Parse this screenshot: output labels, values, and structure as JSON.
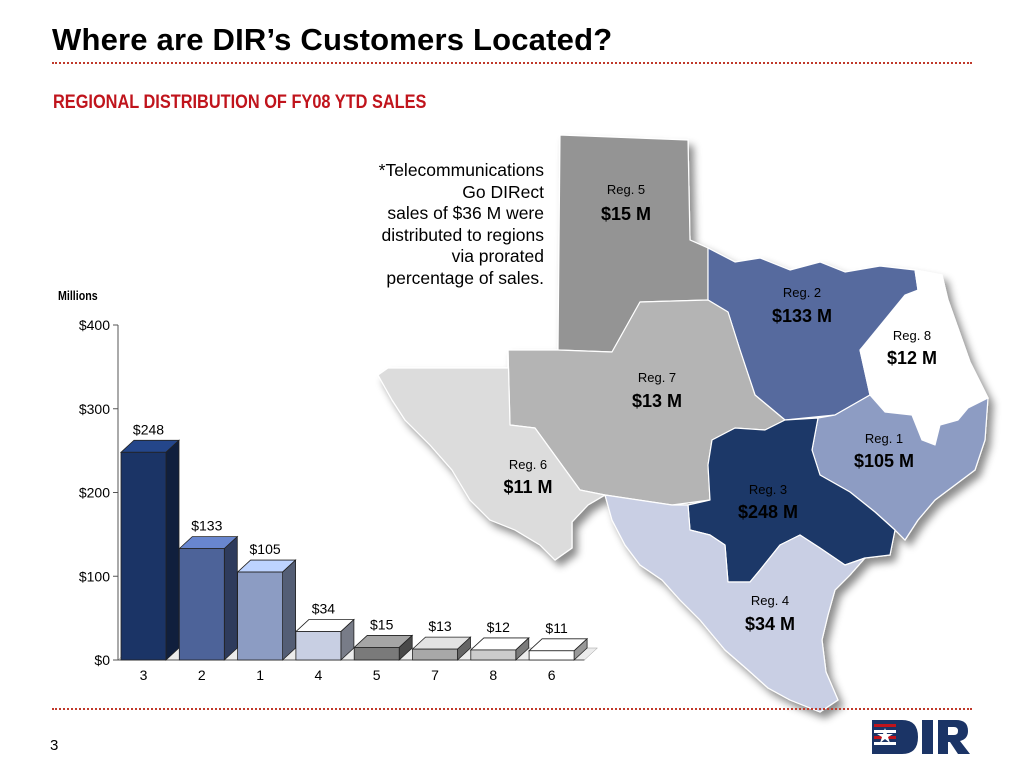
{
  "slide": {
    "title": "Where are DIR’s Customers Located?",
    "subtitle": "REGIONAL DISTRIBUTION OF FY08 YTD SALES",
    "note_lines": [
      "*Telecommunications",
      "Go DIRect",
      "sales of $36 M were",
      "distributed to regions",
      "via prorated",
      "percentage of sales."
    ],
    "page_number": "3",
    "logo_text": "DIR"
  },
  "chart_data": {
    "type": "bar",
    "title": "",
    "xlabel": "",
    "ylabel": "Millions",
    "ylim": [
      0,
      400
    ],
    "yticks": [
      0,
      100,
      200,
      300,
      400
    ],
    "ytick_labels": [
      "$0",
      "$100",
      "$200",
      "$300",
      "$400"
    ],
    "categories": [
      "3",
      "2",
      "1",
      "4",
      "5",
      "7",
      "8",
      "6"
    ],
    "values": [
      248,
      133,
      105,
      34,
      15,
      13,
      12,
      11
    ],
    "data_labels": [
      "$248",
      "$133",
      "$105",
      "$34",
      "$15",
      "$13",
      "$12",
      "$11"
    ],
    "colors": [
      "#1b3466",
      "#4d6399",
      "#8c9cc3",
      "#c8cfe3",
      "#7a7a7a",
      "#a8a8a8",
      "#cccccc",
      "#ffffff"
    ]
  },
  "map": {
    "regions": [
      {
        "id": "reg-5",
        "label": "Reg. 5",
        "value_label": "$15 M",
        "color": "#949494"
      },
      {
        "id": "reg-2",
        "label": "Reg. 2",
        "value_label": "$133 M",
        "color": "#566a9e"
      },
      {
        "id": "reg-8",
        "label": "Reg. 8",
        "value_label": "$12 M",
        "color": "#ffffff"
      },
      {
        "id": "reg-7",
        "label": "Reg. 7",
        "value_label": "$13 M",
        "color": "#b4b4b4"
      },
      {
        "id": "reg-1",
        "label": "Reg. 1",
        "value_label": "$105 M",
        "color": "#8d9cc3"
      },
      {
        "id": "reg-6",
        "label": "Reg. 6",
        "value_label": "$11 M",
        "color": "#dcdcdc"
      },
      {
        "id": "reg-3",
        "label": "Reg. 3",
        "value_label": "$248 M",
        "color": "#1e3868"
      },
      {
        "id": "reg-4",
        "label": "Reg. 4",
        "value_label": "$34 M",
        "color": "#c9cfe4"
      }
    ]
  }
}
